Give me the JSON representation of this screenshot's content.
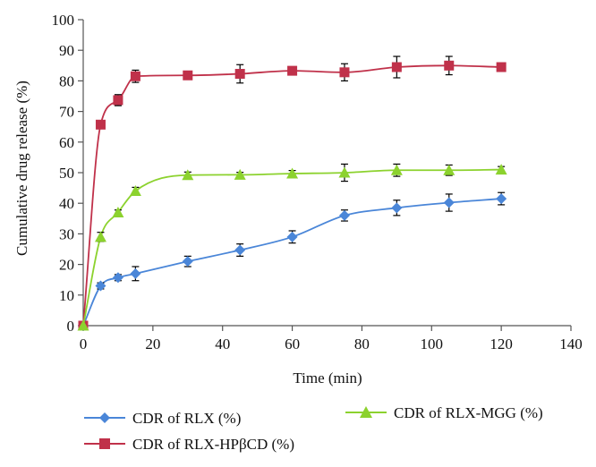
{
  "chart_data": {
    "type": "line",
    "title": "",
    "xlabel": "Time (min)",
    "ylabel": "Cumulative drug release (%)",
    "xlim": [
      0,
      140
    ],
    "ylim": [
      0,
      100
    ],
    "x_ticks": [
      "0",
      "20",
      "40",
      "60",
      "80",
      "100",
      "120",
      "140"
    ],
    "y_ticks": [
      "0",
      "10",
      "20",
      "30",
      "40",
      "50",
      "60",
      "70",
      "80",
      "90",
      "100"
    ],
    "grid": false,
    "legend_position": "bottom",
    "series": [
      {
        "name": "CDR of RLX (%)",
        "marker": "diamond",
        "color": "#4a86d8",
        "x": [
          0,
          5,
          10,
          15,
          30,
          45,
          60,
          75,
          90,
          105,
          120
        ],
        "values": [
          0,
          13,
          15.7,
          17,
          21,
          24.7,
          29,
          36,
          38.5,
          40.2,
          41.5
        ],
        "errors": [
          0,
          1,
          1,
          2.3,
          1.7,
          2,
          2,
          1.8,
          2.5,
          2.8,
          2
        ]
      },
      {
        "name": "CDR of RLX-HPβCD (%)",
        "marker": "square",
        "color": "#c0314a",
        "x": [
          0,
          5,
          10,
          15,
          30,
          45,
          60,
          75,
          90,
          105,
          120
        ],
        "values": [
          0,
          65.7,
          73.7,
          81.5,
          81.8,
          82.3,
          83.3,
          82.8,
          84.5,
          85,
          84.5
        ],
        "errors": [
          0,
          1,
          1.8,
          2,
          1.2,
          3,
          1,
          2.8,
          3.5,
          3,
          1
        ]
      },
      {
        "name": "CDR of RLX-MGG (%)",
        "marker": "triangle",
        "color": "#8cd22e",
        "x": [
          0,
          5,
          10,
          15,
          30,
          45,
          60,
          75,
          90,
          105,
          120
        ],
        "values": [
          0,
          29,
          37,
          44,
          49.2,
          49.3,
          49.7,
          50,
          50.8,
          50.8,
          51
        ],
        "errors": [
          0,
          1.5,
          0.8,
          1.2,
          1,
          0.8,
          1,
          2.8,
          2,
          1.7,
          1
        ]
      }
    ]
  }
}
